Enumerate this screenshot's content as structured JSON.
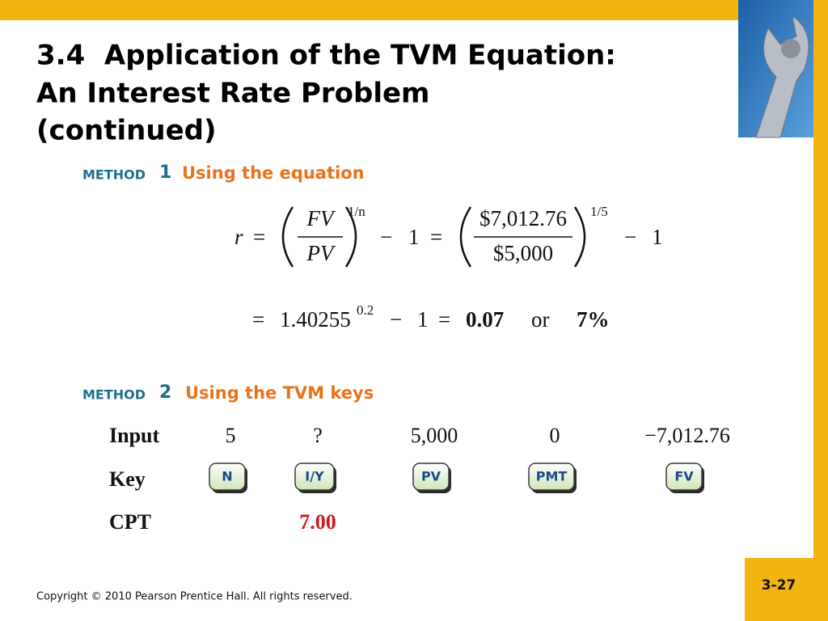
{
  "title": {
    "lines": [
      "3.4  Application of the TVM Equation:",
      "An Interest Rate Problem",
      "(continued)"
    ]
  },
  "method1": {
    "label": "METHOD",
    "number": "1",
    "heading": "Using the equation"
  },
  "equation": {
    "line1": {
      "r": "r",
      "eq1": "=",
      "fv": "FV",
      "pv": "PV",
      "exp1": "1/n",
      "minus1": "−",
      "one1": "1",
      "eq2": "=",
      "num": "$7,012.76",
      "den": "$5,000",
      "exp2": "1/5",
      "minus2": "−",
      "one2": "1"
    },
    "line2": {
      "eq1": "=",
      "base": "1.40255",
      "exp": "0.2",
      "minus": "−",
      "one": "1",
      "eq2": "=",
      "result": "0.07",
      "or": "or",
      "percent": "7%"
    }
  },
  "method2": {
    "label": "METHOD",
    "number": "2",
    "heading": "Using the TVM keys"
  },
  "table": {
    "input": {
      "label": "Input",
      "cells": [
        "5",
        "?",
        "5,000",
        "0",
        "−7,012.76"
      ]
    },
    "key": {
      "label": "Key",
      "cells": [
        "N",
        "I/Y",
        "PV",
        "PMT",
        "FV"
      ]
    },
    "cpt": {
      "label": "CPT",
      "value": "7.00"
    }
  },
  "footer": {
    "copyright": "Copyright © 2010 Pearson Prentice Hall. All rights reserved.",
    "page": "3-27"
  }
}
